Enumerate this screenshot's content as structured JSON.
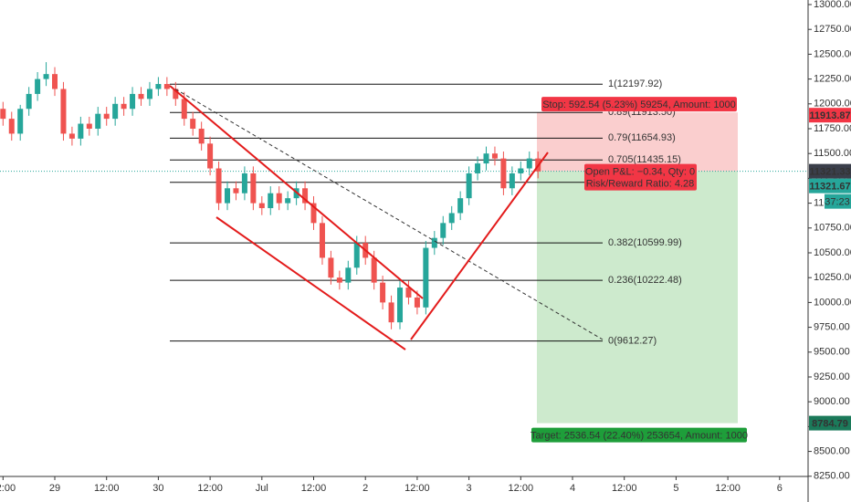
{
  "chart_data": {
    "type": "candlestick",
    "x": [
      -12,
      -10,
      -8,
      -6,
      -4,
      -2,
      0,
      2,
      4,
      6,
      8,
      10,
      12,
      14,
      16,
      18,
      20,
      22,
      24,
      26,
      28,
      30,
      32,
      34,
      36,
      38,
      40,
      42,
      44,
      46,
      48,
      50,
      52,
      54,
      56,
      58,
      60,
      62,
      64,
      66,
      68,
      70,
      72,
      74,
      76,
      78,
      80,
      82,
      84,
      86,
      88,
      90,
      92,
      94,
      96,
      98,
      100,
      102,
      104,
      106,
      108,
      110,
      112
    ],
    "open": [
      11950,
      11850,
      11700,
      11950,
      12100,
      12250,
      12300,
      12150,
      11700,
      11650,
      11800,
      11750,
      11900,
      11850,
      12000,
      11950,
      12100,
      12050,
      12150,
      12200,
      12150,
      12050,
      11850,
      11750,
      11600,
      11350,
      11000,
      11150,
      11100,
      11300,
      11000,
      10950,
      11100,
      11000,
      11050,
      11150,
      11000,
      10800,
      10450,
      10250,
      10200,
      10350,
      10600,
      10450,
      10200,
      10000,
      9800,
      10150,
      10050,
      9950,
      10550,
      10650,
      10800,
      10900,
      11050,
      11300,
      11400,
      11500,
      11450,
      11150,
      11300,
      11350,
      11450
    ],
    "high": [
      12020,
      11920,
      11990,
      12170,
      12320,
      12420,
      12370,
      12220,
      11770,
      11870,
      11870,
      11970,
      11970,
      12070,
      12070,
      12170,
      12170,
      12220,
      12270,
      12270,
      12220,
      12120,
      11920,
      11820,
      11670,
      11420,
      11220,
      11220,
      11370,
      11370,
      11070,
      11170,
      11170,
      11120,
      11220,
      11220,
      11070,
      10870,
      10520,
      10320,
      10420,
      10670,
      10670,
      10520,
      10270,
      10070,
      10220,
      10220,
      10120,
      10620,
      10720,
      10870,
      10970,
      11120,
      11370,
      11470,
      11570,
      11570,
      11520,
      11370,
      11420,
      11520,
      11520
    ],
    "low": [
      11780,
      11630,
      11630,
      11880,
      12030,
      12180,
      12080,
      11630,
      11580,
      11580,
      11680,
      11680,
      11780,
      11780,
      11880,
      11880,
      11980,
      11980,
      12080,
      12080,
      11980,
      11780,
      11680,
      11530,
      11280,
      10930,
      10930,
      11030,
      11030,
      10930,
      10880,
      10880,
      10930,
      10930,
      10980,
      10930,
      10730,
      10380,
      10180,
      10130,
      10130,
      10280,
      10380,
      10130,
      9930,
      9730,
      9730,
      9980,
      9880,
      9880,
      10480,
      10580,
      10730,
      10830,
      10980,
      11230,
      11330,
      11380,
      11080,
      11080,
      11230,
      11280,
      11250
    ],
    "close": [
      11850,
      11700,
      11950,
      12100,
      12250,
      12300,
      12150,
      11700,
      11650,
      11800,
      11750,
      11900,
      11850,
      12000,
      11950,
      12100,
      12050,
      12150,
      12200,
      12150,
      12050,
      11850,
      11750,
      11600,
      11350,
      11000,
      11150,
      11100,
      11300,
      11000,
      10950,
      11100,
      11000,
      11050,
      11150,
      11000,
      10800,
      10450,
      10250,
      10200,
      10350,
      10600,
      10450,
      10200,
      10000,
      9800,
      10150,
      10050,
      9950,
      10550,
      10650,
      10800,
      10900,
      11050,
      11300,
      11400,
      11500,
      11450,
      11150,
      11300,
      11350,
      11450,
      11320
    ],
    "up_color": "#26a69a",
    "down_color": "#ef5350",
    "xlim": [
      -12.7,
      174.6
    ],
    "xticks": [
      {
        "value": -12,
        "label": "12:00"
      },
      {
        "value": 0,
        "label": "29"
      },
      {
        "value": 12,
        "label": "12:00"
      },
      {
        "value": 24,
        "label": "30"
      },
      {
        "value": 36,
        "label": "12:00"
      },
      {
        "value": 48,
        "label": "Jul"
      },
      {
        "value": 60,
        "label": "12:00"
      },
      {
        "value": 72,
        "label": "2"
      },
      {
        "value": 84,
        "label": "12:00"
      },
      {
        "value": 96,
        "label": "3"
      },
      {
        "value": 108,
        "label": "12:00"
      },
      {
        "value": 120,
        "label": "4"
      },
      {
        "value": 132,
        "label": "12:00"
      },
      {
        "value": 144,
        "label": "5"
      },
      {
        "value": 156,
        "label": "12:00"
      },
      {
        "value": 168,
        "label": "6"
      }
    ],
    "ylim": [
      8248,
      13046
    ],
    "yticks": [
      {
        "value": 13000,
        "label": "13000.00"
      },
      {
        "value": 12750,
        "label": "12750.00"
      },
      {
        "value": 12500,
        "label": "12500.00"
      },
      {
        "value": 12250,
        "label": "12250.00"
      },
      {
        "value": 12000,
        "label": "12000.00"
      },
      {
        "value": 11750,
        "label": "11750.00"
      },
      {
        "value": 11500,
        "label": "11500.00"
      },
      {
        "value": 11250,
        "label": "11250.00"
      },
      {
        "value": 11000,
        "label": "11000.00"
      },
      {
        "value": 10750,
        "label": "10750.00"
      },
      {
        "value": 10500,
        "label": "10500.00"
      },
      {
        "value": 10250,
        "label": "10250.00"
      },
      {
        "value": 10000,
        "label": "10000.00"
      },
      {
        "value": 9750,
        "label": "9750.00"
      },
      {
        "value": 9500,
        "label": "9500.00"
      },
      {
        "value": 9250,
        "label": "9250.00"
      },
      {
        "value": 9000,
        "label": "9000.00"
      },
      {
        "value": 8750,
        "label": "8750.00"
      },
      {
        "value": 8500,
        "label": "8500.00"
      },
      {
        "value": 8250,
        "label": "8250.00"
      }
    ],
    "fib_levels": [
      {
        "label": "1(12197.92)",
        "value": 12197.92
      },
      {
        "label": "0.89(11913.50)",
        "value": 11913.5
      },
      {
        "label": "0.79(11654.93)",
        "value": 11654.93
      },
      {
        "label": "0.705(11435.15)",
        "value": 11435.15
      },
      {
        "label": null,
        "value": 11210.2
      },
      {
        "label": "0.382(10599.99)",
        "value": 10599.99
      },
      {
        "label": "0.236(10222.48)",
        "value": 10222.48
      },
      {
        "label": "0(9612.27)",
        "value": 9612.27
      }
    ],
    "position": {
      "stop": 11913.87,
      "entry": 11321.67,
      "target": 8784.79,
      "stop_label": "Stop: 592.54 (5.23%) 59254, Amount: 1000",
      "pnl_label": "Open P&L: −0.34, Qty: 0",
      "ratio_label": "Risk/Reward Ratio: 4.28",
      "target_label": "Target: 2536.54 (22.40%) 253654, Amount: 1000"
    },
    "last_price": 11321.33,
    "countdown": "37:23"
  }
}
